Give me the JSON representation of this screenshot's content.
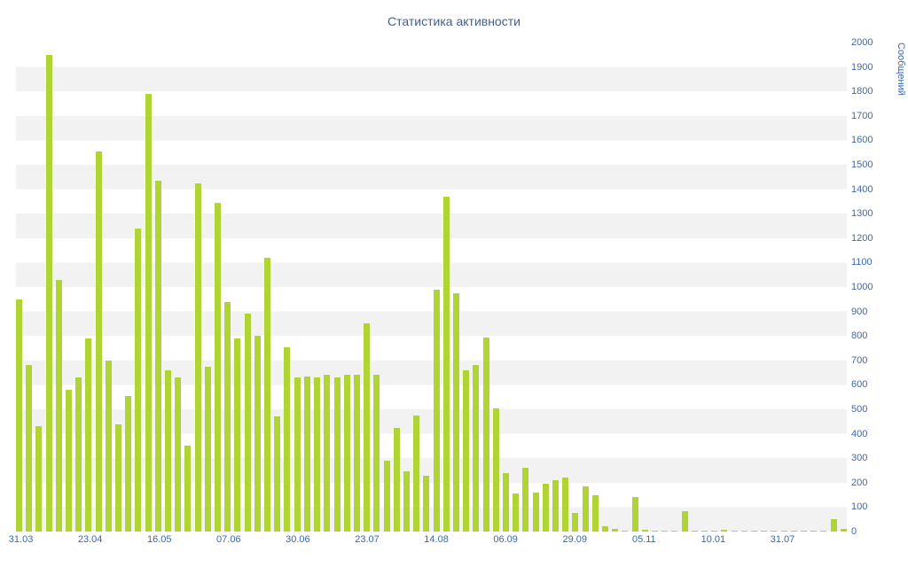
{
  "colors": {
    "bar": "#b1d435",
    "band": "#f2f2f2",
    "axis_text": "#3b68ad",
    "title_text": "#44618a"
  },
  "chart_data": {
    "type": "bar",
    "title": "Статистика активности",
    "xlabel": "",
    "ylabel": "Сообщений",
    "ylim": [
      0,
      2000
    ],
    "grid": "horizontal-bands",
    "legend": "none",
    "y_ticks": [
      0,
      100,
      200,
      300,
      400,
      500,
      600,
      700,
      800,
      900,
      1000,
      1100,
      1200,
      1300,
      1400,
      1500,
      1600,
      1700,
      1800,
      1900,
      2000
    ],
    "x_tick_labels": [
      "31.03",
      "23.04",
      "16.05",
      "07.06",
      "30.06",
      "23.07",
      "14.08",
      "06.09",
      "29.09",
      "05.11",
      "10.01",
      "31.07"
    ],
    "x_tick_indices": [
      0,
      7,
      14,
      21,
      28,
      35,
      42,
      49,
      56,
      63,
      70,
      77
    ],
    "values": [
      950,
      680,
      430,
      1950,
      1030,
      580,
      630,
      790,
      1555,
      700,
      440,
      555,
      1240,
      1790,
      1435,
      660,
      630,
      350,
      1425,
      675,
      1345,
      940,
      790,
      890,
      800,
      1120,
      470,
      755,
      630,
      635,
      630,
      640,
      630,
      640,
      640,
      850,
      640,
      290,
      425,
      245,
      475,
      230,
      990,
      1370,
      975,
      660,
      680,
      795,
      505,
      240,
      155,
      260,
      160,
      195,
      210,
      220,
      75,
      185,
      150,
      20,
      10,
      5,
      140,
      8,
      3,
      5,
      3,
      85,
      3,
      5,
      3,
      8,
      3,
      5,
      3,
      3,
      5,
      3,
      3,
      3,
      5,
      3,
      50,
      10
    ]
  }
}
